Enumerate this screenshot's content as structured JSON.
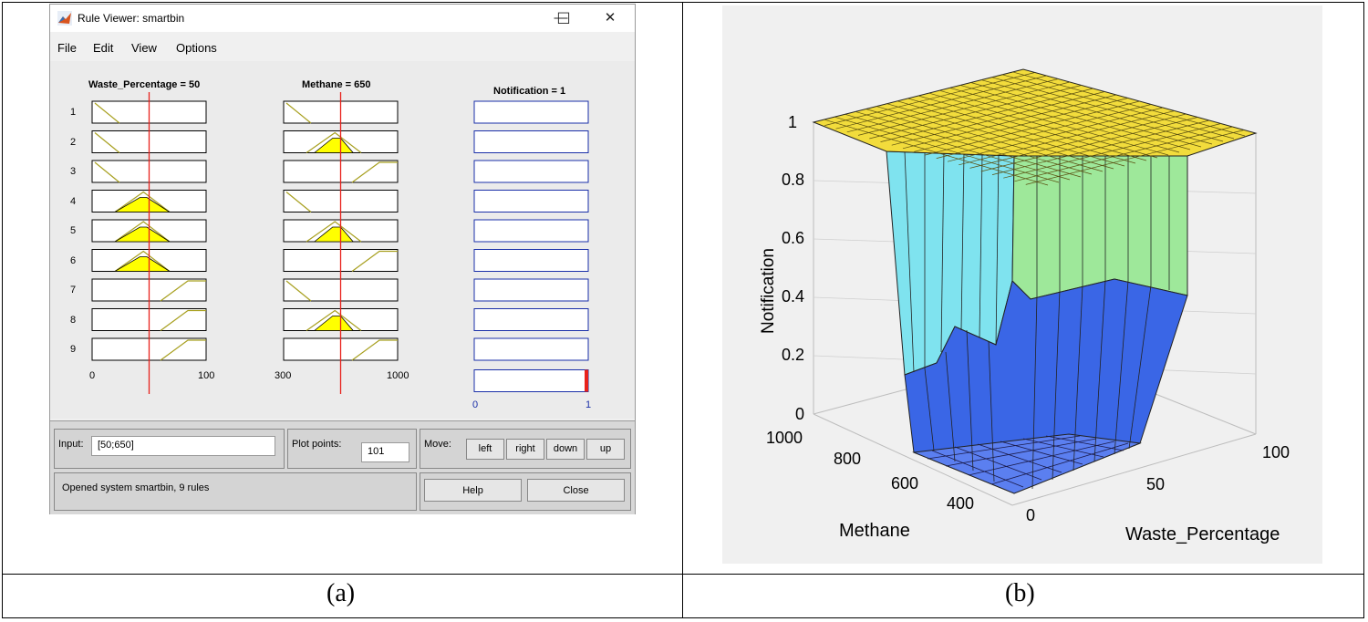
{
  "window": {
    "title": "Rule Viewer: smartbin",
    "menu": [
      "File",
      "Edit",
      "View",
      "Options"
    ],
    "controls": {
      "minimize": "—",
      "maximize": "☐",
      "close": "✕"
    }
  },
  "rule_viewer": {
    "inputs": [
      {
        "header": "Waste_Percentage = 50",
        "min_label": "0",
        "max_label": "100",
        "range": [
          0,
          100
        ],
        "value": 50
      },
      {
        "header": "Methane = 650",
        "min_label": "300",
        "max_label": "1000",
        "range": [
          300,
          1000
        ],
        "value": 650
      }
    ],
    "output": {
      "header": "Notification = 1",
      "min_label": "0",
      "max_label": "1",
      "value": 1
    },
    "rules": [
      "1",
      "2",
      "3",
      "4",
      "5",
      "6",
      "7",
      "8",
      "9"
    ],
    "waste_mf": [
      "low",
      "low",
      "low",
      "med",
      "med",
      "med",
      "high",
      "high",
      "high"
    ],
    "methane_mf": [
      "low",
      "med",
      "high",
      "low",
      "med",
      "high",
      "low",
      "med",
      "high"
    ]
  },
  "controls": {
    "input_label": "Input:",
    "input_value": "[50;650]",
    "plot_points_label": "Plot points:",
    "plot_points_value": "101",
    "move_label": "Move:",
    "move_buttons": [
      "left",
      "right",
      "down",
      "up"
    ],
    "status": "Opened system smartbin, 9 rules",
    "help": "Help",
    "close": "Close"
  },
  "surface": {
    "zlabel": "Notification",
    "xlabel": "Methane",
    "ylabel": "Waste_Percentage",
    "z_ticks": [
      "0",
      "0.2",
      "0.4",
      "0.6",
      "0.8",
      "1"
    ],
    "methane_ticks": [
      "1000",
      "800",
      "600",
      "400"
    ],
    "waste_ticks": [
      "0",
      "50",
      "100"
    ]
  },
  "captions": {
    "a": "(a)",
    "b": "(b)"
  }
}
